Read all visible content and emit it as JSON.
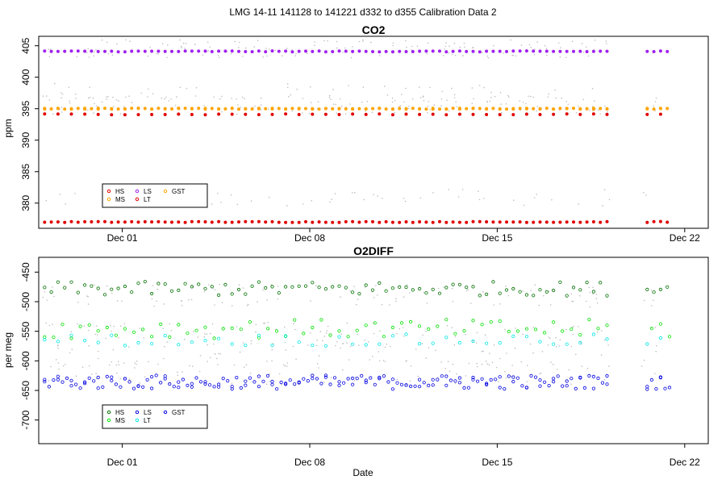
{
  "page_title": "LMG   14-11    141128 to 141221    d332 to d355   Calibration Data 2",
  "colors": {
    "HS_top": "#e00000",
    "MS_top": "#ffa500",
    "LS_top": "#a020f0",
    "LT_top": "#e00000",
    "GST_top": "#ffa500",
    "HS_bot": "#007000",
    "MS_bot": "#00e000",
    "LS_bot": "#0000e0",
    "LT_bot": "#00e5e5",
    "GST_bot": "#0000e0",
    "raw": "#bebebe"
  },
  "chart_data": [
    {
      "type": "scatter",
      "title": "CO2",
      "xlabel": "",
      "ylabel": "ppm",
      "x_ticks": [
        "Dec 01",
        "Dec 08",
        "Dec 15",
        "Dec 22"
      ],
      "y_ticks": [
        "380",
        "385",
        "390",
        "395",
        "400",
        "405"
      ],
      "ylim": [
        376,
        406.5
      ],
      "x_range": [
        "2014-11-28",
        "2014-12-22"
      ],
      "legend_position": "bottom-left",
      "legend": [
        "HS",
        "MS",
        "LS",
        "LT",
        "GST"
      ],
      "series": [
        {
          "name": "HS",
          "x_start": "2014-11-28",
          "x_end": "2014-12-21",
          "interval_hours": 6,
          "y": 377.0,
          "gap": [
            "2014-12-19",
            "2014-12-20"
          ]
        },
        {
          "name": "MS",
          "x_start": "2014-11-28",
          "x_end": "2014-12-21",
          "interval_hours": 6,
          "y": 395.0,
          "gap": [
            "2014-12-19",
            "2014-12-20"
          ]
        },
        {
          "name": "LS",
          "x_start": "2014-11-28",
          "x_end": "2014-12-21",
          "interval_hours": 6,
          "y": 404.1,
          "gap": [
            "2014-12-19",
            "2014-12-20"
          ]
        },
        {
          "name": "LT",
          "x_start": "2014-11-28",
          "x_end": "2014-12-21",
          "interval_hours": 12,
          "y": 394.1,
          "gap": [
            "2014-12-19",
            "2014-12-20"
          ]
        },
        {
          "name": "GST",
          "x_start": "2014-11-28",
          "x_end": "2014-12-21",
          "interval_hours": 12,
          "y": 395.0,
          "gap": [
            "2014-12-19",
            "2014-12-20"
          ]
        }
      ]
    },
    {
      "type": "scatter",
      "title": "O2DIFF",
      "xlabel": "Date",
      "ylabel": "per meg",
      "x_ticks": [
        "Dec 01",
        "Dec 08",
        "Dec 15",
        "Dec 22"
      ],
      "y_ticks": [
        "-700",
        "-650",
        "-600",
        "-550",
        "-500",
        "-450"
      ],
      "ylim": [
        -740,
        -425
      ],
      "x_range": [
        "2014-11-28",
        "2014-12-22"
      ],
      "legend_position": "bottom-left",
      "legend": [
        "HS",
        "MS",
        "LS",
        "LT",
        "GST"
      ],
      "series": [
        {
          "name": "HS",
          "x_start": "2014-11-28",
          "x_end": "2014-12-21",
          "interval_hours": 6,
          "y": -478,
          "spread": 12,
          "gap": [
            "2014-12-19",
            "2014-12-20"
          ]
        },
        {
          "name": "MS",
          "x_start": "2014-11-28",
          "x_end": "2014-12-21",
          "interval_hours": 8,
          "y": -546,
          "spread": 16,
          "gap": [
            "2014-12-19",
            "2014-12-20"
          ]
        },
        {
          "name": "LS",
          "x_start": "2014-11-28",
          "x_end": "2014-12-21",
          "interval_hours": 4,
          "y": -636,
          "spread": 12,
          "gap": [
            "2014-12-19",
            "2014-12-20"
          ]
        },
        {
          "name": "LT",
          "x_start": "2014-11-28",
          "x_end": "2014-12-21",
          "interval_hours": 12,
          "y": -565,
          "spread": 10,
          "gap": [
            "2014-12-19",
            "2014-12-20"
          ]
        },
        {
          "name": "GST",
          "x_start": "2014-11-28",
          "x_end": "2014-12-21",
          "interval_hours": 12,
          "y": -636,
          "spread": 10,
          "gap": [
            "2014-12-19",
            "2014-12-20"
          ]
        }
      ]
    }
  ]
}
